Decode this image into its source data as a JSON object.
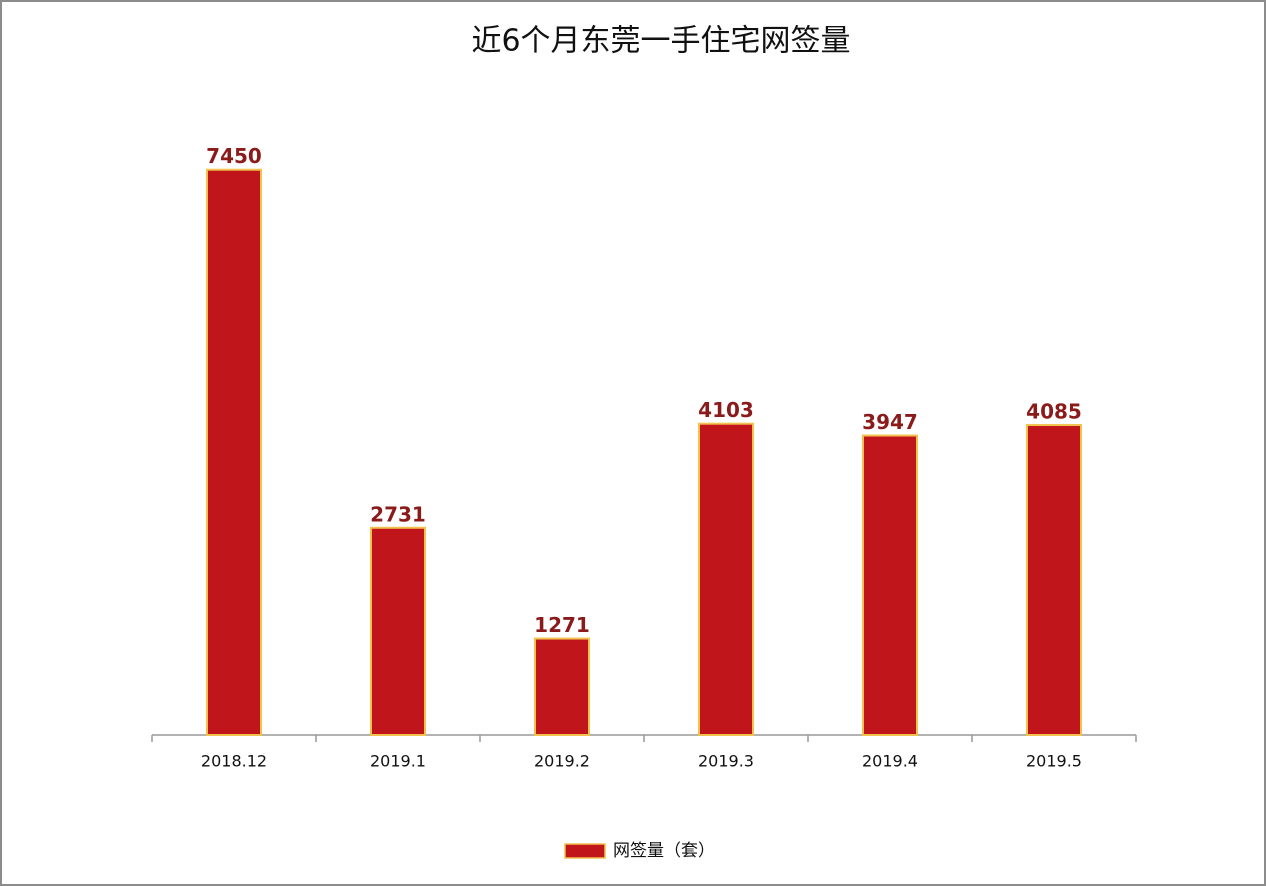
{
  "chart_data": {
    "type": "bar",
    "title": "近6个月东莞一手住宅网签量",
    "categories": [
      "2018.12",
      "2019.1",
      "2019.2",
      "2019.3",
      "2019.4",
      "2019.5"
    ],
    "series": [
      {
        "name": "网签量（套）",
        "color": "#c0151b",
        "values": [
          7450,
          2731,
          1271,
          4103,
          3947,
          4085
        ]
      }
    ],
    "ylim": [
      0,
      8000
    ],
    "legend": "bottom"
  }
}
